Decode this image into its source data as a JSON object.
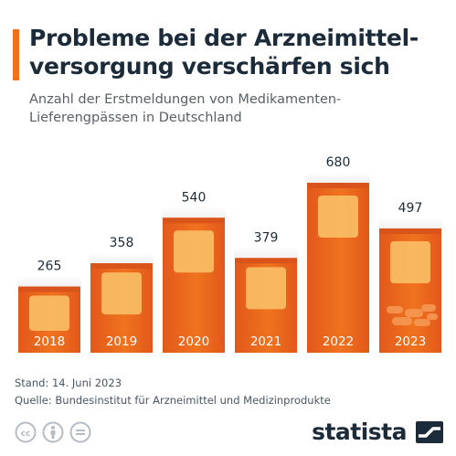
{
  "header": {
    "title": "Probleme bei der Arzneimittel-versorgung verschärfen sich",
    "subtitle": "Anzahl der Erstmeldungen von Medikamenten-Lieferengpässen in Deutschland"
  },
  "chart_data": {
    "type": "bar",
    "categories": [
      "2018",
      "2019",
      "2020",
      "2021",
      "2022",
      "2023"
    ],
    "values": [
      265,
      358,
      540,
      379,
      680,
      497
    ],
    "title": "Probleme bei der Arzneimittel-versorgung verschärfen sich",
    "subtitle": "Anzahl der Erstmeldungen von Medikamenten-Lieferengpässen in Deutschland",
    "xlabel": "",
    "ylabel": "",
    "ylim": [
      0,
      680
    ],
    "grid": false,
    "legend": "none",
    "colors": {
      "bar": "#ef6a1e",
      "cap": "#ffffff",
      "label_panel": "#f9bb63",
      "text": "#1c2b39"
    }
  },
  "footer": {
    "stand": "Stand: 14. Juni 2023",
    "quelle": "Quelle: Bundesinstitut für Arzneimittel und Medizinprodukte"
  },
  "license_icons": [
    "cc-icon",
    "by-person-icon",
    "nd-equals-icon"
  ],
  "logo": {
    "text": "statista"
  },
  "colors": {
    "accent": "#f2711c",
    "title": "#1c2b39"
  }
}
